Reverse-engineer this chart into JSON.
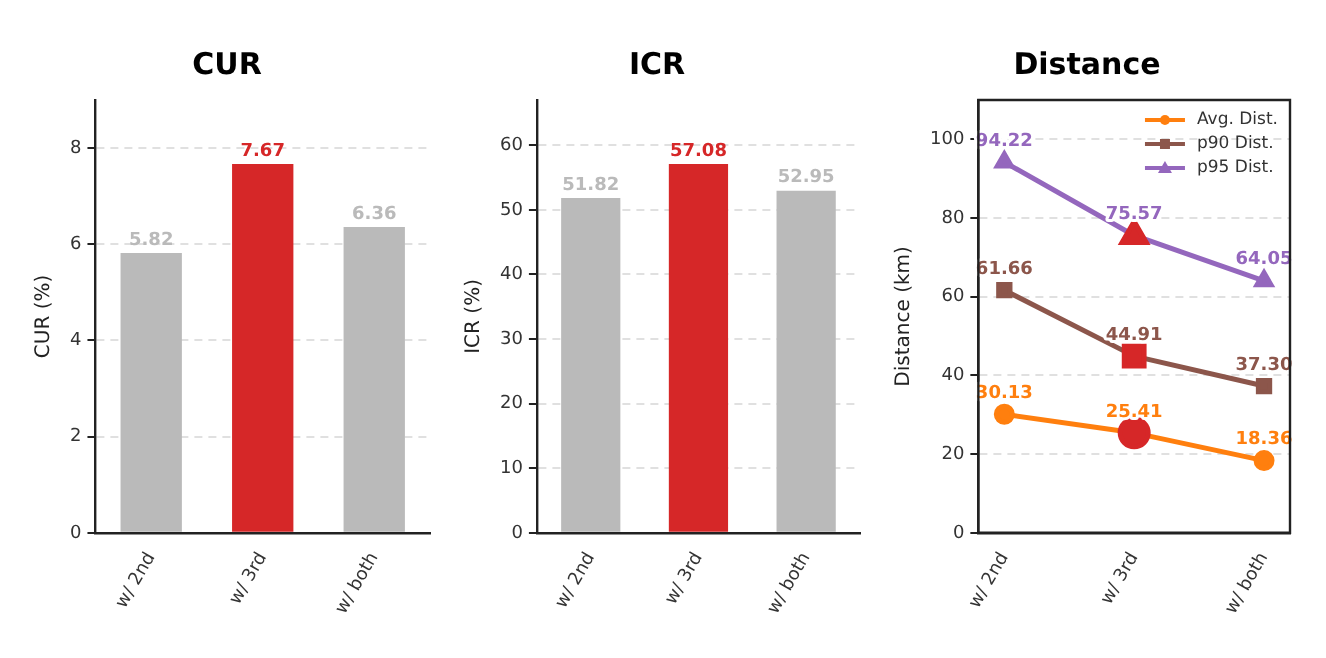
{
  "chart_data": [
    {
      "type": "bar",
      "title": "CUR",
      "ylabel": "CUR (%)",
      "categories": [
        "w/ 2nd",
        "w/ 3rd",
        "w/ both"
      ],
      "values": [
        5.82,
        7.67,
        6.36
      ],
      "colors": [
        "#bababa",
        "#d62728",
        "#bababa"
      ],
      "data_labels": true,
      "ylim": [
        0,
        9
      ],
      "yticks": [
        0,
        2,
        4,
        6,
        8
      ],
      "grid": "y"
    },
    {
      "type": "bar",
      "title": "ICR",
      "ylabel": "ICR (%)",
      "categories": [
        "w/ 2nd",
        "w/ 3rd",
        "w/ both"
      ],
      "values": [
        51.82,
        57.08,
        52.95
      ],
      "colors": [
        "#bababa",
        "#d62728",
        "#bababa"
      ],
      "data_labels": true,
      "ylim": [
        0,
        67
      ],
      "yticks": [
        0,
        10,
        20,
        30,
        40,
        50,
        60
      ],
      "grid": "y"
    },
    {
      "type": "line",
      "title": "Distance",
      "ylabel": "Distance (km)",
      "categories": [
        "w/ 2nd",
        "w/ 3rd",
        "w/ both"
      ],
      "series": [
        {
          "name": "Avg. Dist.",
          "color": "#ff7f0e",
          "colors": [
            "#ff7f0e",
            "#d62728",
            "#ff7f0e"
          ],
          "marker": "circle",
          "values": [
            30.13,
            25.41,
            18.36
          ],
          "value_labels": [
            "30.13",
            "25.41",
            "18.36"
          ]
        },
        {
          "name": "p90 Dist.",
          "color": "#8c564b",
          "colors": [
            "#8c564b",
            "#d62728",
            "#8c564b"
          ],
          "marker": "square",
          "values": [
            61.66,
            44.91,
            37.3
          ],
          "value_labels": [
            "61.66",
            "44.91",
            "37.30"
          ]
        },
        {
          "name": "p95 Dist.",
          "color": "#9467bd",
          "colors": [
            "#9467bd",
            "#d62728",
            "#9467bd"
          ],
          "marker": "triangle",
          "values": [
            94.22,
            75.57,
            64.05
          ],
          "value_labels": [
            "94.22",
            "75.57",
            "64.05"
          ]
        }
      ],
      "legend": "top right",
      "ylim": [
        0,
        110
      ],
      "yticks": [
        0,
        20,
        40,
        60,
        80,
        100
      ],
      "grid": "y"
    }
  ]
}
